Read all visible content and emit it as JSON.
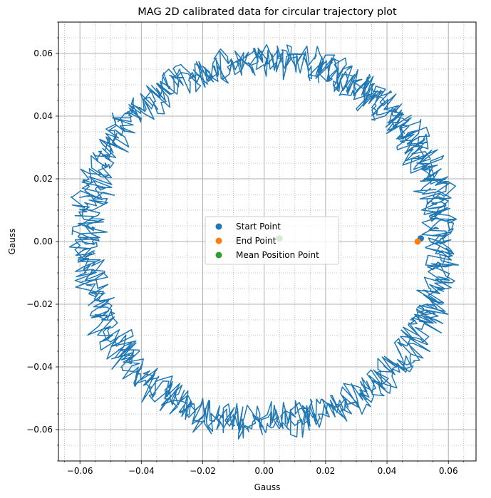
{
  "chart_data": {
    "type": "line",
    "title": "MAG 2D calibrated data for circular trajectory plot",
    "xlabel": "Gauss",
    "ylabel": "Gauss",
    "xlim": [
      -0.067,
      0.069
    ],
    "ylim": [
      -0.07,
      0.07
    ],
    "major_ticks": [
      -0.06,
      -0.04,
      -0.02,
      0.0,
      0.02,
      0.04,
      0.06
    ],
    "x_tick_labels": [
      "−0.06",
      "−0.04",
      "−0.02",
      "0.00",
      "0.02",
      "0.04",
      "0.06"
    ],
    "y_tick_labels": [
      "−0.06",
      "−0.04",
      "−0.02",
      "0.00",
      "0.02",
      "0.04",
      "0.06"
    ],
    "minor_tick_step": 0.005,
    "grid": {
      "major": true,
      "minor": true,
      "major_style": "solid",
      "minor_style": "dotted"
    },
    "legend_location": "center",
    "trajectory": {
      "color": "#1f77b4",
      "center": [
        0.0,
        0.0
      ],
      "radius_estimate": 0.058,
      "shape": "noisy closed circle, multiple overlapping laps"
    },
    "series": [
      {
        "name": "Start Point",
        "color": "#1f77b4",
        "x": 0.051,
        "y": 0.001
      },
      {
        "name": "End Point",
        "color": "#ff7f0e",
        "x": 0.05,
        "y": 0.0
      },
      {
        "name": "Mean Position Point",
        "color": "#2ca02c",
        "x": 0.005,
        "y": 0.001
      }
    ]
  }
}
